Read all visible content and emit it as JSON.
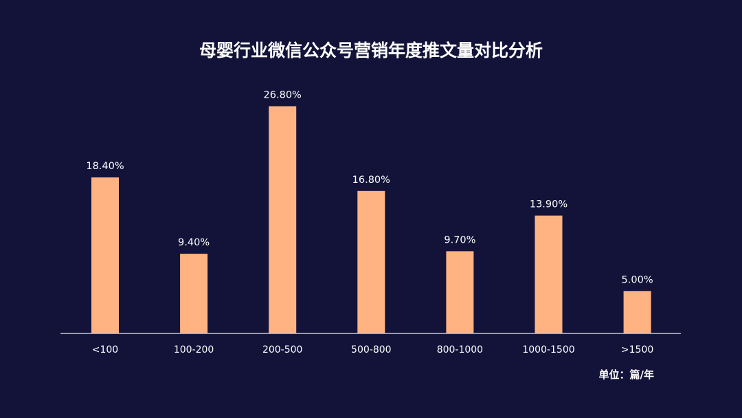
{
  "chart_data": {
    "type": "bar",
    "title": "母婴行业微信公众号营销年度推文量对比分析",
    "categories": [
      "<100",
      "100-200",
      "200-500",
      "500-800",
      "800-1000",
      "1000-1500",
      ">1500"
    ],
    "values": [
      18.4,
      9.4,
      26.8,
      16.8,
      9.7,
      13.9,
      5.0
    ],
    "data_labels": [
      "18.40%",
      "9.40%",
      "26.80%",
      "16.80%",
      "9.70%",
      "13.90%",
      "5.00%"
    ],
    "unit": "单位：篇/年",
    "xlabel": "",
    "ylabel": "",
    "ylim": [
      0,
      30
    ],
    "grid": false,
    "legend": "none",
    "colors": {
      "background": "#13133a",
      "bar": "#ffb383",
      "axis": "#c8c8d8",
      "text": "#ffffff"
    }
  }
}
